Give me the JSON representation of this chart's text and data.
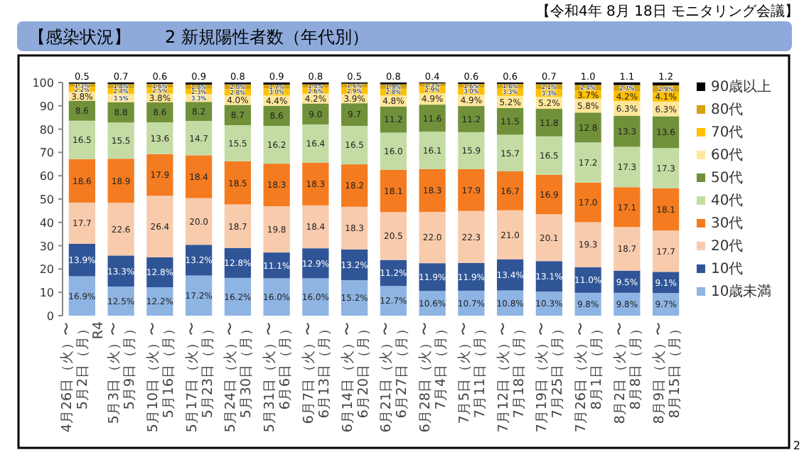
{
  "chart_data": {
    "type": "bar",
    "stacked": true,
    "title": "【感染状況】　　2 新規陽性者数（年代別）",
    "annotations": [
      "【令和4年 8月 18日 モニタリング会議】",
      "2"
    ],
    "categories": [
      "4月26日（火）〜\n5月2日（月）\nR4",
      "5月3日（火）〜\n5月9日（月）",
      "5月10日（火）〜\n5月16日（月）",
      "5月17日（火）〜\n5月23日（月）",
      "5月24日（火）〜\n5月30日（月）",
      "5月31日（火）〜\n6月6日（月）",
      "6月7日（火）〜\n6月13日（月）",
      "6月14日（火）〜\n6月20日（月）",
      "6月21日（火）〜\n6月27日（月）",
      "6月28日（火）〜\n7月4日（月）",
      "7月5日（火）〜\n7月11日（月）",
      "7月12日（火）〜\n7月18日（月）",
      "7月19日（火）〜\n7月25日（月）",
      "7月26日（火）〜\n8月1日（月）",
      "8月2日（火）〜\n8月8日（月）",
      "8月9日（火）〜\n8月15日（月）"
    ],
    "ylim": [
      0,
      100
    ],
    "yticks": [
      0,
      10,
      20,
      30,
      40,
      50,
      60,
      70,
      80,
      90,
      100
    ],
    "legend": "right",
    "series": [
      {
        "name": "10歳未満",
        "color": "#8eb4e3",
        "values": [
          16.9,
          12.5,
          12.2,
          17.2,
          16.2,
          16.0,
          16.0,
          15.2,
          12.7,
          10.6,
          10.7,
          10.8,
          10.3,
          9.8,
          9.8,
          9.7
        ],
        "value_labels": [
          "16.9%",
          "12.5%",
          "12.2%",
          "17.2%",
          "16.2%",
          "16.0%",
          "16.0%",
          "15.2%",
          "12.7%",
          "10.6%",
          "10.7%",
          "10.8%",
          "10.3%",
          "9.8%",
          "9.8%",
          "9.7%"
        ]
      },
      {
        "name": "10代",
        "color": "#2f5597",
        "values": [
          13.9,
          13.3,
          12.8,
          13.2,
          12.8,
          11.1,
          12.9,
          13.2,
          11.2,
          11.9,
          11.9,
          13.4,
          13.1,
          11.0,
          9.5,
          9.1
        ],
        "value_labels": [
          "13.9%",
          "13.3%",
          "12.8%",
          "13.2%",
          "12.8%",
          "11.1%",
          "12.9%",
          "13.2%",
          "11.2%",
          "11.9%",
          "11.9%",
          "13.4%",
          "13.1%",
          "11.0%",
          "9.5%",
          "9.1%"
        ]
      },
      {
        "name": "20代",
        "color": "#f8cbad",
        "values": [
          17.7,
          22.6,
          26.4,
          20.0,
          18.7,
          19.8,
          18.4,
          18.3,
          20.5,
          22.0,
          22.3,
          21.0,
          20.1,
          19.3,
          18.7,
          17.7
        ],
        "value_labels": [
          "17.7",
          "22.6",
          "26.4",
          "20.0",
          "18.7",
          "19.8",
          "18.4",
          "18.3",
          "20.5",
          "22.0",
          "22.3",
          "21.0",
          "20.1",
          "19.3",
          "18.7",
          "17.7"
        ]
      },
      {
        "name": "30代",
        "color": "#f47b20",
        "values": [
          18.6,
          18.9,
          17.9,
          18.4,
          18.5,
          18.3,
          18.3,
          18.2,
          18.1,
          18.3,
          17.9,
          16.7,
          16.9,
          17.0,
          17.1,
          18.1
        ],
        "value_labels": [
          "18.6",
          "18.9",
          "17.9",
          "18.4",
          "18.5",
          "18.3",
          "18.3",
          "18.2",
          "18.1",
          "18.3",
          "17.9",
          "16.7",
          "16.9",
          "17.0",
          "17.1",
          "18.1"
        ]
      },
      {
        "name": "40代",
        "color": "#c4dca4",
        "values": [
          16.5,
          15.5,
          13.6,
          14.7,
          15.5,
          16.2,
          16.4,
          16.5,
          16.0,
          16.1,
          15.9,
          15.7,
          16.5,
          17.2,
          17.3,
          17.3
        ],
        "value_labels": [
          "16.5",
          "15.5",
          "13.6",
          "14.7",
          "15.5",
          "16.2",
          "16.4",
          "16.5",
          "16.0",
          "16.1",
          "15.9",
          "15.7",
          "16.5",
          "17.2",
          "17.3",
          "17.3"
        ]
      },
      {
        "name": "50代",
        "color": "#70913a",
        "values": [
          8.6,
          8.8,
          8.6,
          8.2,
          8.7,
          8.6,
          9.0,
          9.7,
          11.2,
          11.6,
          11.2,
          11.5,
          11.8,
          12.8,
          13.3,
          13.6
        ],
        "value_labels": [
          "8.6",
          "8.8",
          "8.6",
          "8.2",
          "8.7",
          "8.6",
          "9.0",
          "9.7",
          "11.2",
          "11.6",
          "11.2",
          "11.5",
          "11.8",
          "12.8",
          "13.3",
          "13.6"
        ]
      },
      {
        "name": "60代",
        "color": "#ffe699",
        "values": [
          3.8,
          3.5,
          3.8,
          3.3,
          4.0,
          4.4,
          4.2,
          3.9,
          4.8,
          4.9,
          4.9,
          5.2,
          5.2,
          5.8,
          6.3,
          6.3
        ],
        "value_labels": [
          "3.8%",
          "3.5%",
          "3.8%",
          "3.3%",
          "4.0%",
          "4.4%",
          "4.2%",
          "3.9%",
          "4.8%",
          "4.9%",
          "4.9%",
          "5.2%",
          "5.2%",
          "5.8%",
          "6.3%",
          "6.3%"
        ]
      },
      {
        "name": "70代",
        "color": "#ffc000",
        "values": [
          2.2,
          2.4,
          2.5,
          2.3,
          2.8,
          3.0,
          2.6,
          2.9,
          2.8,
          2.9,
          3.0,
          3.3,
          3.3,
          3.7,
          4.2,
          4.1
        ],
        "value_labels": [
          "2.2%",
          "2.4%",
          "2.5%",
          "2.3%",
          "2.8%",
          "3.0%",
          "2.6%",
          "2.9%",
          "2.8%",
          "2.9%",
          "3.0%",
          "3.3%",
          "3.3%",
          "3.7%",
          "4.2%",
          "4.1%"
        ]
      },
      {
        "name": "80代",
        "color": "#d4a20c",
        "values": [
          1.3,
          1.8,
          1.6,
          1.8,
          2.0,
          1.7,
          1.4,
          1.6,
          1.9,
          1.3,
          1.6,
          1.8,
          2.1,
          2.4,
          2.7,
          2.9
        ],
        "value_labels": [
          "1.3%",
          "1.8%",
          "1.6%",
          "1.8%",
          "2.0%",
          "1.7%",
          "1.4%",
          "1.6%",
          "1.9%",
          "1.3%",
          "1.6%",
          "1.8%",
          "2.1%",
          "2.4%",
          "2.7%",
          "2.9%"
        ]
      },
      {
        "name": "90歳以上",
        "color": "#000000",
        "values": [
          0.5,
          0.7,
          0.6,
          0.9,
          0.8,
          0.9,
          0.8,
          0.5,
          0.8,
          0.4,
          0.6,
          0.6,
          0.7,
          1.0,
          1.1,
          1.2
        ],
        "value_labels": [
          "0.5",
          "0.7",
          "0.6",
          "0.9",
          "0.8",
          "0.9",
          "0.8",
          "0.5",
          "0.8",
          "0.4",
          "0.6",
          "0.6",
          "0.7",
          "1.0",
          "1.1",
          "1.2"
        ]
      }
    ]
  }
}
